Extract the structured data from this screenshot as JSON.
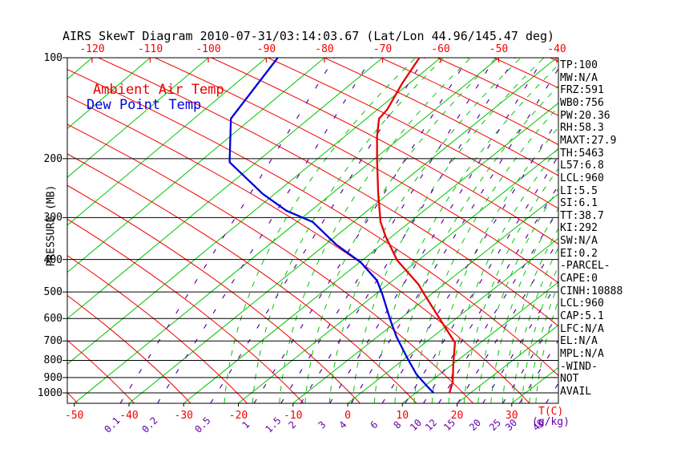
{
  "title": "AIRS SkewT Diagram 2010-07-31/03:14:03.67 (Lat/Lon 44.96/145.47 deg)",
  "legend": {
    "temp_label": "Ambient Air Temp",
    "dew_label": "Dew Point Temp"
  },
  "axes": {
    "pressure_label": "PRESSURE (MB)",
    "pressure_ticks": [
      100,
      200,
      300,
      400,
      500,
      600,
      700,
      800,
      900,
      1000
    ],
    "temp_unit_label": "T(C)",
    "temp_ticks_bottom": [
      -50,
      -40,
      -30,
      -20,
      -10,
      0,
      10,
      20,
      30
    ],
    "temp_ticks_top": [
      -120,
      -110,
      -100,
      -90,
      -80,
      -70,
      -60,
      -50,
      -40
    ],
    "mixing_unit_label": "(g/kg)",
    "mixing_ticks": [
      0.1,
      0.2,
      0.5,
      1,
      1.5,
      2,
      3,
      4,
      6,
      8,
      10,
      12,
      15,
      20,
      25,
      30,
      40
    ]
  },
  "stats": [
    "TP:100",
    "MW:N/A",
    "FRZ:591",
    "WB0:756",
    "PW:20.36",
    "RH:58.3",
    "MAXT:27.9",
    "TH:5463",
    "L57:6.8",
    "LCL:960",
    "LI:5.5",
    "SI:6.1",
    "TT:38.7",
    "KI:292",
    "SW:N/A",
    "EI:0.2",
    "-PARCEL-",
    "CAPE:0",
    "CINH:10888",
    "LCL:960",
    "CAP:5.1",
    "LFC:N/A",
    "EL:N/A",
    "MPL:N/A",
    "-WIND-",
    "NOT",
    "AVAIL"
  ],
  "colors": {
    "isotherm_green": "#00c400",
    "dry_adiabat_red": "#f40000",
    "mixing_purple": "#6600aa",
    "moist_green": "#00c400",
    "pressure_line_black": "#000000",
    "ambient_temp_line": "#e80000",
    "dew_point_line": "#0000dd"
  },
  "chart_data": {
    "type": "line",
    "title": "AIRS SkewT Diagram 2010-07-31/03:14:03.67 (Lat/Lon 44.96/145.47 deg)",
    "xlabel": "T(C)",
    "ylabel": "PRESSURE (MB)",
    "y_scale": "log-pressure, 100 to 1000 mb",
    "x_range_bottom_c": [
      -52,
      37
    ],
    "isotherms_c": {
      "start": -130,
      "end": 30,
      "step": 10
    },
    "mixing_ratio_lines_gkg": [
      0.1,
      0.2,
      0.5,
      1,
      1.5,
      2,
      3,
      4,
      6,
      8,
      10,
      12,
      15,
      20,
      25,
      30,
      40
    ],
    "series": [
      {
        "name": "Ambient Air Temp",
        "points_pressure_mb_temp_c": [
          [
            100,
            -63.3
          ],
          [
            119,
            -60.8
          ],
          [
            143,
            -57.7
          ],
          [
            152,
            -57.2
          ],
          [
            172,
            -53.6
          ],
          [
            202,
            -48.4
          ],
          [
            255,
            -40.7
          ],
          [
            309,
            -34.1
          ],
          [
            341,
            -30.0
          ],
          [
            402,
            -22.6
          ],
          [
            475,
            -13.3
          ],
          [
            510,
            -9.9
          ],
          [
            608,
            -1.3
          ],
          [
            708,
            6.2
          ],
          [
            822,
            10.7
          ],
          [
            928,
            14.5
          ],
          [
            1000,
            16.3
          ]
        ]
      },
      {
        "name": "Dew Point Temp",
        "points_pressure_mb_temp_c": [
          [
            100,
            -89.2
          ],
          [
            152,
            -84.3
          ],
          [
            205,
            -74.9
          ],
          [
            255,
            -61.8
          ],
          [
            286,
            -53.8
          ],
          [
            309,
            -46.5
          ],
          [
            361,
            -37.2
          ],
          [
            407,
            -28.9
          ],
          [
            462,
            -21.8
          ],
          [
            510,
            -17.6
          ],
          [
            608,
            -10.5
          ],
          [
            680,
            -5.8
          ],
          [
            782,
            0.6
          ],
          [
            881,
            6.2
          ],
          [
            951,
            10.5
          ],
          [
            1000,
            13.4
          ]
        ]
      }
    ]
  }
}
